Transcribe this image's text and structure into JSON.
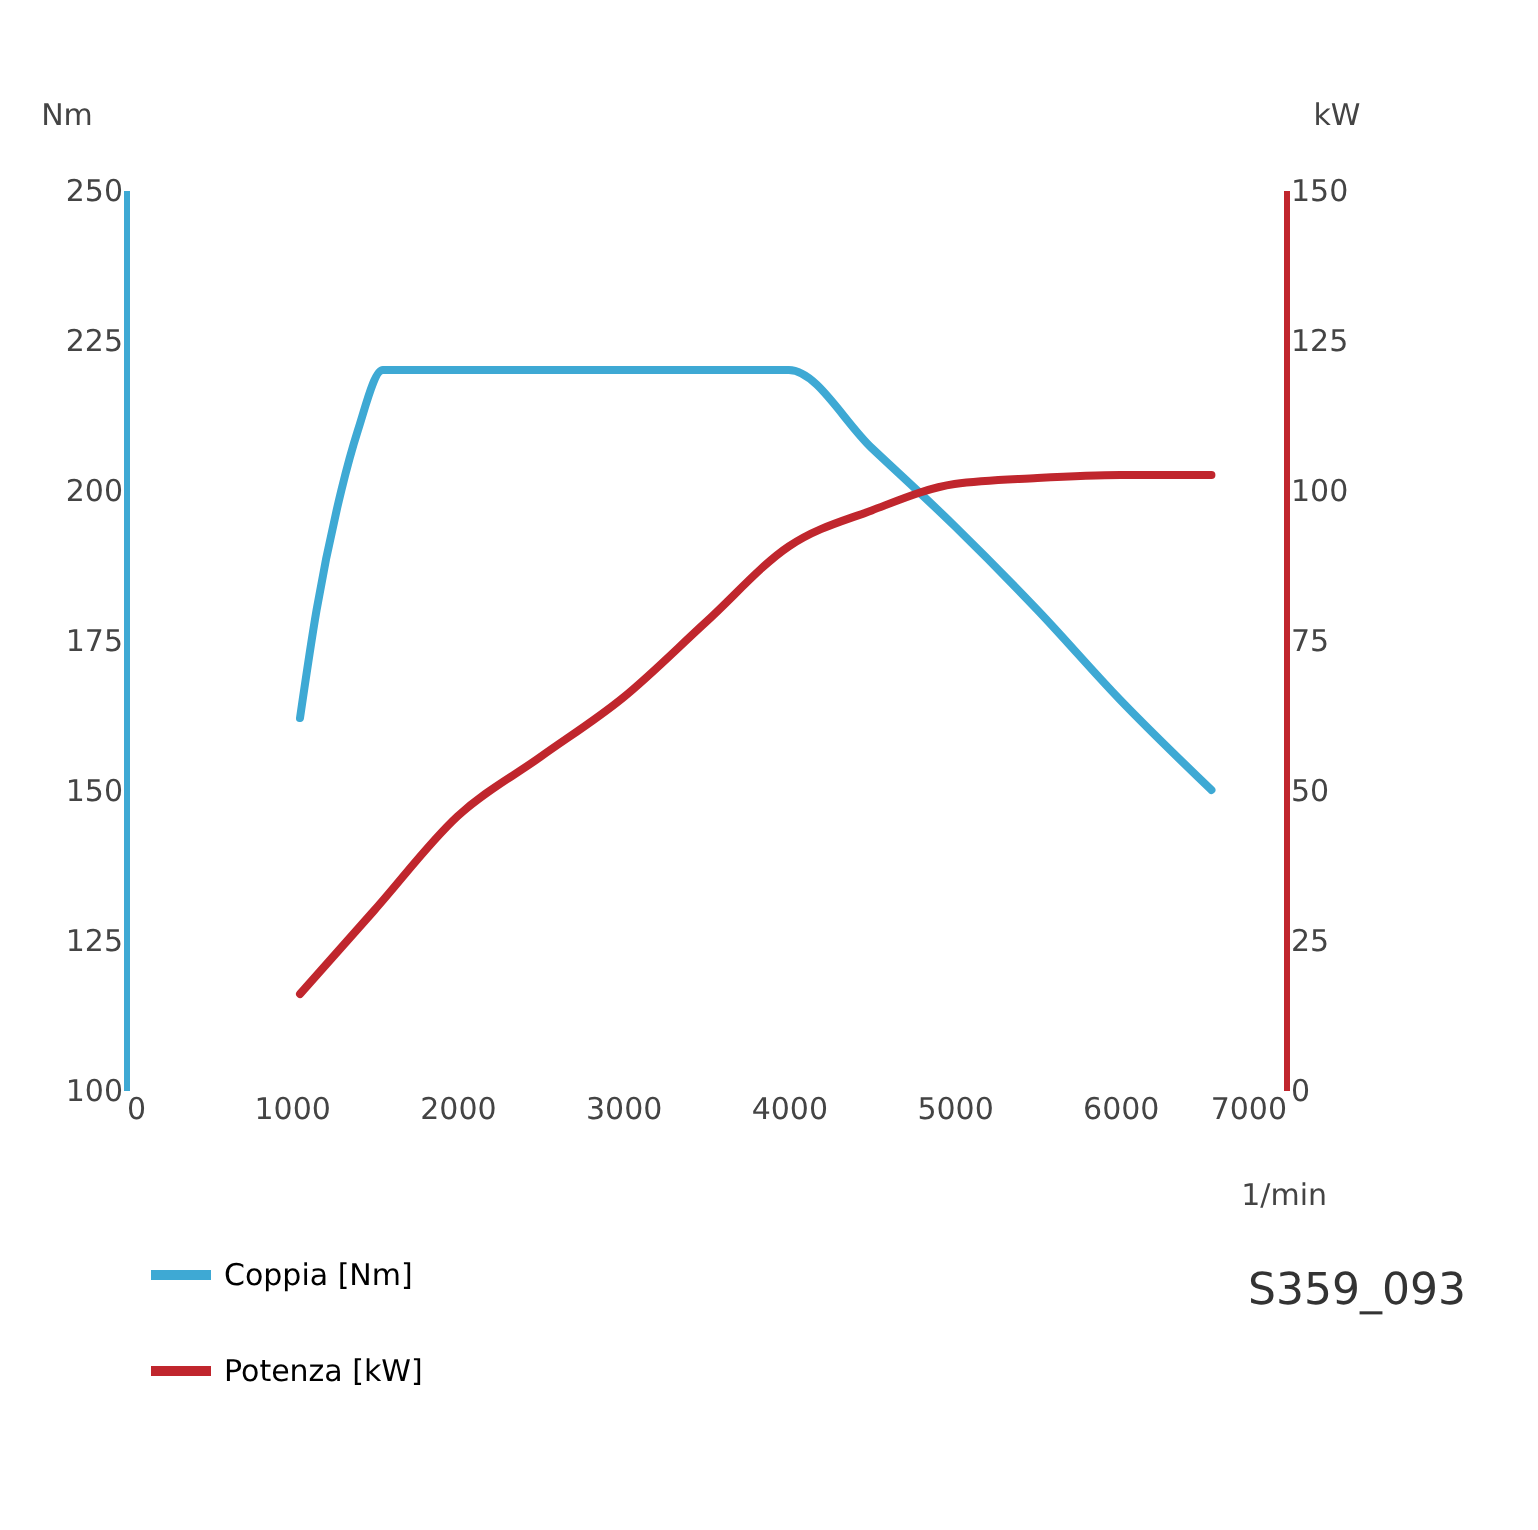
{
  "chart_data": {
    "type": "line",
    "xlabel": "1/min",
    "ylabel": "Nm",
    "y2label": "kW",
    "xlim": [
      0,
      7000
    ],
    "xticks": [
      0,
      1000,
      2000,
      3000,
      4000,
      5000,
      6000,
      7000
    ],
    "ylim": [
      100,
      250
    ],
    "yticks": [
      100,
      125,
      150,
      175,
      200,
      225,
      250
    ],
    "y2lim": [
      0,
      150
    ],
    "y2ticks": [
      0,
      25,
      50,
      75,
      100,
      125,
      150
    ],
    "series": [
      {
        "name": "Coppia [Nm]",
        "color": "#3ea9d4",
        "x": [
          1050,
          1150,
          1300,
          1400,
          1550,
          4000,
          4500,
          5000,
          5500,
          6000,
          6550
        ],
        "values": [
          162,
          180,
          200,
          210,
          220,
          220,
          207,
          194,
          180,
          165,
          150
        ]
      },
      {
        "name": "Potenza [kW]",
        "color": "#c0262d",
        "axis": "y2",
        "x": [
          1050,
          1500,
          2000,
          2500,
          3000,
          3500,
          4000,
          4500,
          5000,
          5500,
          6000,
          6550
        ],
        "values": [
          16,
          30,
          45.6,
          55.5,
          65.4,
          78,
          90.6,
          96.6,
          101,
          102,
          102.5,
          102.5
        ]
      }
    ],
    "legend": "bottom left",
    "grid": false,
    "line_style": "solid",
    "marker": "none",
    "annotations": [
      "S359_093"
    ]
  }
}
